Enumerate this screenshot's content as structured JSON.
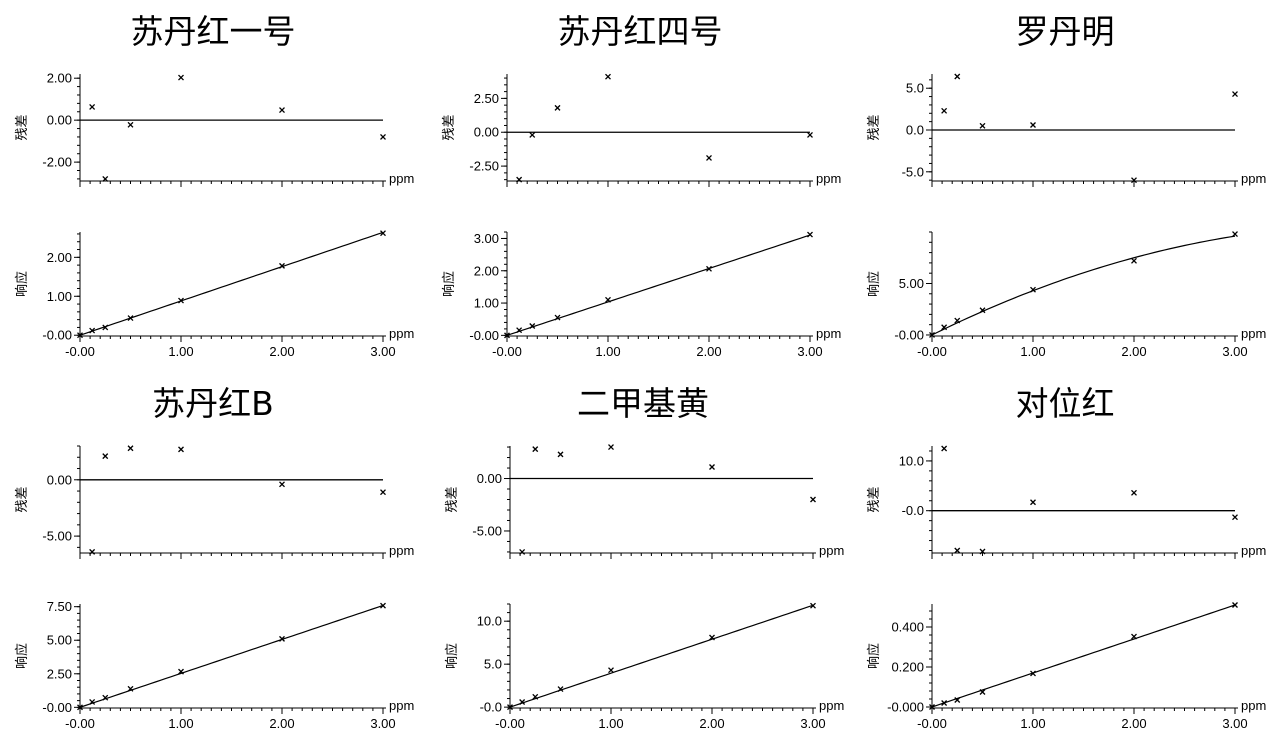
{
  "chart_data": [
    {
      "title": "苏丹红一号",
      "residual": {
        "type": "scatter",
        "ylabel": "残差",
        "unit": "ppm",
        "x": [
          0.12,
          0.25,
          0.5,
          1.0,
          2.0,
          3.0
        ],
        "y": [
          0.63,
          -2.8,
          -0.22,
          2.03,
          0.48,
          -0.8
        ],
        "ylim": [
          -2.9,
          2.2
        ],
        "yticks": [
          -2.0,
          0.0,
          2.0
        ],
        "yticklabels": [
          "-2.00",
          "0.00",
          "2.00"
        ]
      },
      "response": {
        "type": "scatter",
        "ylabel": "响应",
        "unit": "ppm",
        "x": [
          0.0,
          0.12,
          0.25,
          0.5,
          1.0,
          2.0,
          3.0
        ],
        "y": [
          0.0,
          0.12,
          0.2,
          0.44,
          0.89,
          1.78,
          2.62
        ],
        "fit": [
          0.0,
          0.88,
          0.0
        ],
        "ylim": [
          -0.02,
          2.65
        ],
        "yticks": [
          0.0,
          1.0,
          2.0
        ],
        "yticklabels": [
          "-0.00",
          "1.00",
          "2.00"
        ],
        "xlim": [
          0,
          3
        ],
        "xticks": [
          0,
          1,
          2,
          3
        ],
        "xticklabels": [
          "-0.00",
          "1.00",
          "2.00",
          "3.00"
        ]
      }
    },
    {
      "title": "苏丹红四号",
      "residual": {
        "type": "scatter",
        "ylabel": "残差",
        "unit": "ppm",
        "x": [
          0.12,
          0.25,
          0.5,
          1.0,
          2.0,
          3.0
        ],
        "y": [
          -3.5,
          -0.2,
          1.8,
          4.1,
          -1.9,
          -0.2
        ],
        "ylim": [
          -3.6,
          4.3
        ],
        "yticks": [
          -2.5,
          0.0,
          2.5
        ],
        "yticklabels": [
          "-2.50",
          "0.00",
          "2.50"
        ]
      },
      "response": {
        "type": "scatter",
        "ylabel": "响应",
        "unit": "ppm",
        "x": [
          0.0,
          0.12,
          0.25,
          0.5,
          1.0,
          2.0,
          3.0
        ],
        "y": [
          0.0,
          0.16,
          0.29,
          0.55,
          1.1,
          2.06,
          3.12
        ],
        "fit": [
          0.0,
          1.035,
          0.0
        ],
        "ylim": [
          -0.02,
          3.2
        ],
        "yticks": [
          0.0,
          1.0,
          2.0,
          3.0
        ],
        "yticklabels": [
          "-0.00",
          "1.00",
          "2.00",
          "3.00"
        ],
        "xlim": [
          0,
          3
        ],
        "xticks": [
          0,
          1,
          2,
          3
        ],
        "xticklabels": [
          "-0.00",
          "1.00",
          "2.00",
          "3.00"
        ]
      }
    },
    {
      "title": "罗丹明",
      "residual": {
        "type": "scatter",
        "ylabel": "残差",
        "unit": "ppm",
        "x": [
          0.12,
          0.25,
          0.5,
          1.0,
          2.0,
          3.0
        ],
        "y": [
          2.3,
          6.4,
          0.5,
          0.6,
          -6.0,
          4.3
        ],
        "ylim": [
          -6.1,
          6.7
        ],
        "yticks": [
          -5.0,
          0.0,
          5.0
        ],
        "yticklabels": [
          "-5.0",
          "0.0",
          "5.0"
        ]
      },
      "response": {
        "type": "scatter",
        "ylabel": "响应",
        "unit": "ppm",
        "x": [
          0.0,
          0.12,
          0.25,
          0.5,
          1.0,
          2.0,
          3.0
        ],
        "y": [
          0.0,
          0.75,
          1.4,
          2.4,
          4.4,
          7.2,
          9.8
        ],
        "fit": [
          0.0,
          4.85,
          -0.55
        ],
        "ylim": [
          -0.1,
          10.0
        ],
        "yticks": [
          0.0,
          5.0
        ],
        "yticklabels": [
          "-0.00",
          "5.00"
        ],
        "xlim": [
          0,
          3
        ],
        "xticks": [
          0,
          1,
          2,
          3
        ],
        "xticklabels": [
          "-0.00",
          "1.00",
          "2.00",
          "3.00"
        ]
      }
    },
    {
      "title": "苏丹红B",
      "residual": {
        "type": "scatter",
        "ylabel": "残差",
        "unit": "ppm",
        "x": [
          0.12,
          0.25,
          0.5,
          1.0,
          2.0,
          3.0
        ],
        "y": [
          -6.4,
          2.1,
          2.8,
          2.7,
          -0.4,
          -1.1
        ],
        "ylim": [
          -6.5,
          3.0
        ],
        "yticks": [
          -5.0,
          0.0
        ],
        "yticklabels": [
          "-5.00",
          "0.00"
        ]
      },
      "response": {
        "type": "scatter",
        "ylabel": "响应",
        "unit": "ppm",
        "x": [
          0.0,
          0.12,
          0.25,
          0.5,
          1.0,
          2.0,
          3.0
        ],
        "y": [
          0.0,
          0.4,
          0.72,
          1.38,
          2.66,
          5.1,
          7.58
        ],
        "fit": [
          0.0,
          2.53,
          0.0
        ],
        "ylim": [
          -0.05,
          7.7
        ],
        "yticks": [
          0.0,
          2.5,
          5.0,
          7.5
        ],
        "yticklabels": [
          "-0.00",
          "2.50",
          "5.00",
          "7.50"
        ],
        "xlim": [
          0,
          3
        ],
        "xticks": [
          0,
          1,
          2,
          3
        ],
        "xticklabels": [
          "-0.00",
          "1.00",
          "2.00",
          "3.00"
        ]
      }
    },
    {
      "title": "二甲基黄",
      "residual": {
        "type": "scatter",
        "ylabel": "残差",
        "unit": "ppm",
        "x": [
          0.12,
          0.25,
          0.5,
          1.0,
          2.0,
          3.0
        ],
        "y": [
          -7.0,
          2.8,
          2.3,
          3.0,
          1.1,
          -2.0
        ],
        "ylim": [
          -7.1,
          3.1
        ],
        "yticks": [
          -5.0,
          0.0
        ],
        "yticklabels": [
          "-5.00",
          "0.00"
        ]
      },
      "response": {
        "type": "scatter",
        "ylabel": "响应",
        "unit": "ppm",
        "x": [
          0.0,
          0.12,
          0.25,
          0.5,
          1.0,
          2.0,
          3.0
        ],
        "y": [
          0.0,
          0.6,
          1.2,
          2.1,
          4.3,
          8.1,
          11.8
        ],
        "fit": [
          0.0,
          3.95,
          0.0
        ],
        "ylim": [
          -0.1,
          12.0
        ],
        "yticks": [
          0.0,
          5.0,
          10.0
        ],
        "yticklabels": [
          "-0.0",
          "5.0",
          "10.0"
        ],
        "xlim": [
          0,
          3
        ],
        "xticks": [
          0,
          1,
          2,
          3
        ],
        "xticklabels": [
          "-0.00",
          "1.00",
          "2.00",
          "3.00"
        ]
      }
    },
    {
      "title": "对位红",
      "residual": {
        "type": "scatter",
        "ylabel": "残差",
        "unit": "ppm",
        "x": [
          0.12,
          0.25,
          0.5,
          1.0,
          2.0,
          3.0
        ],
        "y": [
          12.5,
          -8.0,
          -8.2,
          1.7,
          3.6,
          -1.3
        ],
        "ylim": [
          -8.5,
          13.0
        ],
        "yticks": [
          0.0,
          10.0
        ],
        "yticklabels": [
          "-0.0",
          "10.0"
        ]
      },
      "response": {
        "type": "scatter",
        "ylabel": "响应",
        "unit": "ppm",
        "x": [
          0.0,
          0.12,
          0.25,
          0.5,
          1.0,
          2.0,
          3.0
        ],
        "y": [
          0.0,
          0.02,
          0.035,
          0.075,
          0.168,
          0.352,
          0.51
        ],
        "fit": [
          0.0,
          0.17,
          0.0
        ],
        "ylim": [
          -0.005,
          0.515
        ],
        "yticks": [
          0.0,
          0.2,
          0.4
        ],
        "yticklabels": [
          "-0.000",
          "0.200",
          "0.400"
        ],
        "xlim": [
          0,
          3
        ],
        "xticks": [
          0,
          1,
          2,
          3
        ],
        "xticklabels": [
          "-0.00",
          "1.00",
          "2.00",
          "3.00"
        ]
      }
    }
  ]
}
